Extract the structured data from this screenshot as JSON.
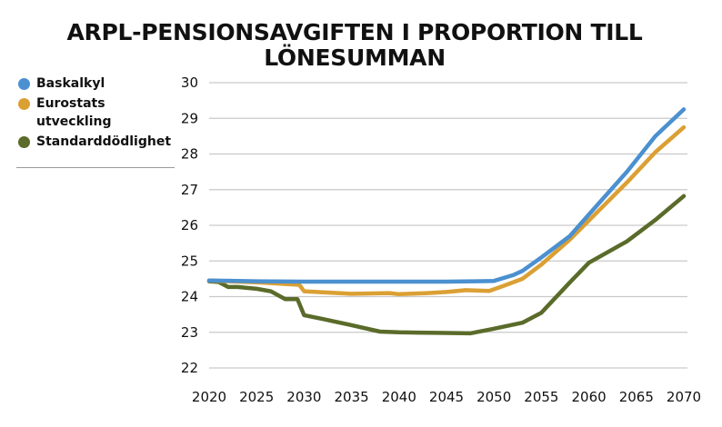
{
  "title": "ARPL-PENSIONSAVGIFTEN I PROPORTION TILL LÖNESUMMAN",
  "chart_data": {
    "type": "line",
    "title": "ARPL-PENSIONSAVGIFTEN I PROPORTION TILL LÖNESUMMAN",
    "xlabel": "",
    "ylabel": "",
    "xlim": [
      2020,
      2070
    ],
    "ylim": [
      22,
      30
    ],
    "x_ticks": [
      2020,
      2025,
      2030,
      2035,
      2040,
      2045,
      2050,
      2055,
      2060,
      2065,
      2070
    ],
    "y_ticks": [
      22,
      23,
      24,
      25,
      26,
      27,
      28,
      29,
      30
    ],
    "grid": "horizontal",
    "legend": "left",
    "series": [
      {
        "name": "Baskalkyl",
        "color": "#4b90d0",
        "points": [
          [
            2020,
            24.45
          ],
          [
            2025,
            24.43
          ],
          [
            2030,
            24.42
          ],
          [
            2035,
            24.42
          ],
          [
            2040,
            24.42
          ],
          [
            2045,
            24.42
          ],
          [
            2048,
            24.43
          ],
          [
            2050,
            24.44
          ],
          [
            2052,
            24.6
          ],
          [
            2053,
            24.72
          ],
          [
            2055,
            25.1
          ],
          [
            2058,
            25.7
          ],
          [
            2061,
            26.6
          ],
          [
            2064,
            27.5
          ],
          [
            2067,
            28.5
          ],
          [
            2070,
            29.25
          ]
        ]
      },
      {
        "name": "Eurostats utveckling",
        "color": "#dba034",
        "points": [
          [
            2020,
            24.45
          ],
          [
            2025,
            24.4
          ],
          [
            2029.5,
            24.33
          ],
          [
            2030,
            24.15
          ],
          [
            2032,
            24.12
          ],
          [
            2035,
            24.08
          ],
          [
            2039,
            24.1
          ],
          [
            2040,
            24.07
          ],
          [
            2043,
            24.1
          ],
          [
            2045,
            24.13
          ],
          [
            2047,
            24.18
          ],
          [
            2049.5,
            24.16
          ],
          [
            2051,
            24.3
          ],
          [
            2053,
            24.5
          ],
          [
            2055,
            24.9
          ],
          [
            2058,
            25.6
          ],
          [
            2061,
            26.4
          ],
          [
            2064,
            27.2
          ],
          [
            2067,
            28.05
          ],
          [
            2070,
            28.75
          ]
        ]
      },
      {
        "name": "Standarddödlighet",
        "color": "#5a6b2a",
        "points": [
          [
            2020,
            24.43
          ],
          [
            2021,
            24.41
          ],
          [
            2022,
            24.27
          ],
          [
            2023,
            24.27
          ],
          [
            2025,
            24.22
          ],
          [
            2026.5,
            24.15
          ],
          [
            2028,
            23.93
          ],
          [
            2029.3,
            23.93
          ],
          [
            2030,
            23.48
          ],
          [
            2032,
            23.37
          ],
          [
            2035,
            23.2
          ],
          [
            2038,
            23.02
          ],
          [
            2040,
            23.0
          ],
          [
            2042,
            22.99
          ],
          [
            2045,
            22.98
          ],
          [
            2047.5,
            22.97
          ],
          [
            2050,
            23.1
          ],
          [
            2053,
            23.27
          ],
          [
            2055,
            23.55
          ],
          [
            2058,
            24.4
          ],
          [
            2060,
            24.95
          ],
          [
            2064,
            25.55
          ],
          [
            2067,
            26.15
          ],
          [
            2070,
            26.82
          ]
        ]
      }
    ]
  }
}
